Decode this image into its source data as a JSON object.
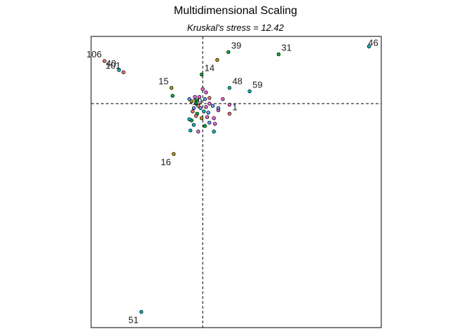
{
  "chart_data": {
    "type": "scatter",
    "title": "Multidimensional Scaling",
    "subtitle": "Kruskal's stress = 12.42",
    "xlim": [
      -1.0,
      1.6
    ],
    "ylim": [
      -2.0,
      0.6
    ],
    "reference_lines": {
      "x": 0,
      "y": 0
    },
    "axes_shown": false,
    "grid": false,
    "palette": [
      "#F8766D",
      "#B79F00",
      "#00BA38",
      "#00BFC4",
      "#619CFF",
      "#F564E3"
    ],
    "points": [
      {
        "label": "46",
        "x": 1.49,
        "y": 0.51,
        "color": "#00BFC4"
      },
      {
        "label": "31",
        "x": 0.68,
        "y": 0.44,
        "color": "#00BA38"
      },
      {
        "label": "39",
        "x": 0.23,
        "y": 0.46,
        "color": "#00BA38"
      },
      {
        "label": "",
        "x": 0.13,
        "y": 0.39,
        "color": "#B79F00"
      },
      {
        "label": "106",
        "x": -0.88,
        "y": 0.38,
        "color": "#F8766D"
      },
      {
        "label": "40",
        "x": -0.75,
        "y": 0.3,
        "color": "#00BFC4"
      },
      {
        "label": "101",
        "x": -0.71,
        "y": 0.28,
        "color": "#F8766D"
      },
      {
        "label": "14",
        "x": -0.01,
        "y": 0.26,
        "color": "#00BA38"
      },
      {
        "label": "48",
        "x": 0.24,
        "y": 0.14,
        "color": "#00BFC4"
      },
      {
        "label": "15",
        "x": -0.28,
        "y": 0.14,
        "color": "#B79F00"
      },
      {
        "label": "59",
        "x": 0.42,
        "y": 0.11,
        "color": "#00BFC4"
      },
      {
        "label": "",
        "x": -0.27,
        "y": 0.07,
        "color": "#00BA38"
      },
      {
        "label": "19",
        "x": -0.12,
        "y": 0.04,
        "color": "#619CFF"
      },
      {
        "label": "1",
        "x": 0.24,
        "y": -0.01,
        "color": "#F564E3"
      },
      {
        "label": "",
        "x": 0.18,
        "y": 0.04,
        "color": "#F564E3"
      },
      {
        "label": "",
        "x": 0.24,
        "y": -0.09,
        "color": "#F8766D"
      },
      {
        "label": "",
        "x": 0.14,
        "y": -0.06,
        "color": "#F564E3"
      },
      {
        "label": "",
        "x": 0.1,
        "y": -0.13,
        "color": "#F564E3"
      },
      {
        "label": "",
        "x": 0.11,
        "y": -0.18,
        "color": "#F564E3"
      },
      {
        "label": "",
        "x": 0.1,
        "y": -0.25,
        "color": "#00BFC4"
      },
      {
        "label": "",
        "x": 0.14,
        "y": -0.04,
        "color": "#619CFF"
      },
      {
        "label": "",
        "x": 0.0,
        "y": 0.13,
        "color": "#F564E3"
      },
      {
        "label": "",
        "x": 0.03,
        "y": 0.1,
        "color": "#F564E3"
      },
      {
        "label": "",
        "x": 0.06,
        "y": 0.05,
        "color": "#F8766D"
      },
      {
        "label": "",
        "x": -0.03,
        "y": 0.06,
        "color": "#F564E3"
      },
      {
        "label": "",
        "x": -0.07,
        "y": 0.06,
        "color": "#F564E3"
      },
      {
        "label": "",
        "x": -0.05,
        "y": 0.03,
        "color": "#00BA38"
      },
      {
        "label": "",
        "x": 0.02,
        "y": 0.04,
        "color": "#619CFF"
      },
      {
        "label": "",
        "x": 0.06,
        "y": 0.0,
        "color": "#F564E3"
      },
      {
        "label": "",
        "x": 0.09,
        "y": -0.02,
        "color": "#619CFF"
      },
      {
        "label": "",
        "x": -0.04,
        "y": -0.02,
        "color": "#F8766D"
      },
      {
        "label": "",
        "x": -0.08,
        "y": -0.04,
        "color": "#619CFF"
      },
      {
        "label": "",
        "x": -0.09,
        "y": -0.07,
        "color": "#F8766D"
      },
      {
        "label": "",
        "x": -0.05,
        "y": -0.09,
        "color": "#00BA38"
      },
      {
        "label": "",
        "x": 0.01,
        "y": -0.07,
        "color": "#00BFC4"
      },
      {
        "label": "",
        "x": 0.04,
        "y": -0.12,
        "color": "#F564E3"
      },
      {
        "label": "",
        "x": -0.01,
        "y": -0.13,
        "color": "#B79F00"
      },
      {
        "label": "",
        "x": -0.1,
        "y": -0.15,
        "color": "#00BA38"
      },
      {
        "label": "",
        "x": -0.08,
        "y": -0.19,
        "color": "#00BFC4"
      },
      {
        "label": "",
        "x": 0.02,
        "y": -0.2,
        "color": "#00BA38"
      },
      {
        "label": "",
        "x": -0.04,
        "y": -0.25,
        "color": "#F564E3"
      },
      {
        "label": "",
        "x": -0.11,
        "y": -0.24,
        "color": "#00BFC4"
      },
      {
        "label": "",
        "x": -0.12,
        "y": -0.14,
        "color": "#00BFC4"
      },
      {
        "label": "",
        "x": 0.06,
        "y": -0.17,
        "color": "#619CFF"
      },
      {
        "label": "",
        "x": -0.02,
        "y": -0.04,
        "color": "#619CFF"
      },
      {
        "label": "",
        "x": 0.03,
        "y": -0.03,
        "color": "#F564E3"
      },
      {
        "label": "",
        "x": -0.06,
        "y": 0.0,
        "color": "#00BA38"
      },
      {
        "label": "",
        "x": -0.1,
        "y": 0.02,
        "color": "#B79F00"
      },
      {
        "label": "",
        "x": 0.05,
        "y": -0.08,
        "color": "#619CFF"
      },
      {
        "label": "",
        "x": -0.06,
        "y": -0.11,
        "color": "#F8766D"
      },
      {
        "label": "16",
        "x": -0.26,
        "y": -0.45,
        "color": "#B79F00"
      },
      {
        "label": "51",
        "x": -0.55,
        "y": -1.86,
        "color": "#00BFC4"
      }
    ]
  }
}
